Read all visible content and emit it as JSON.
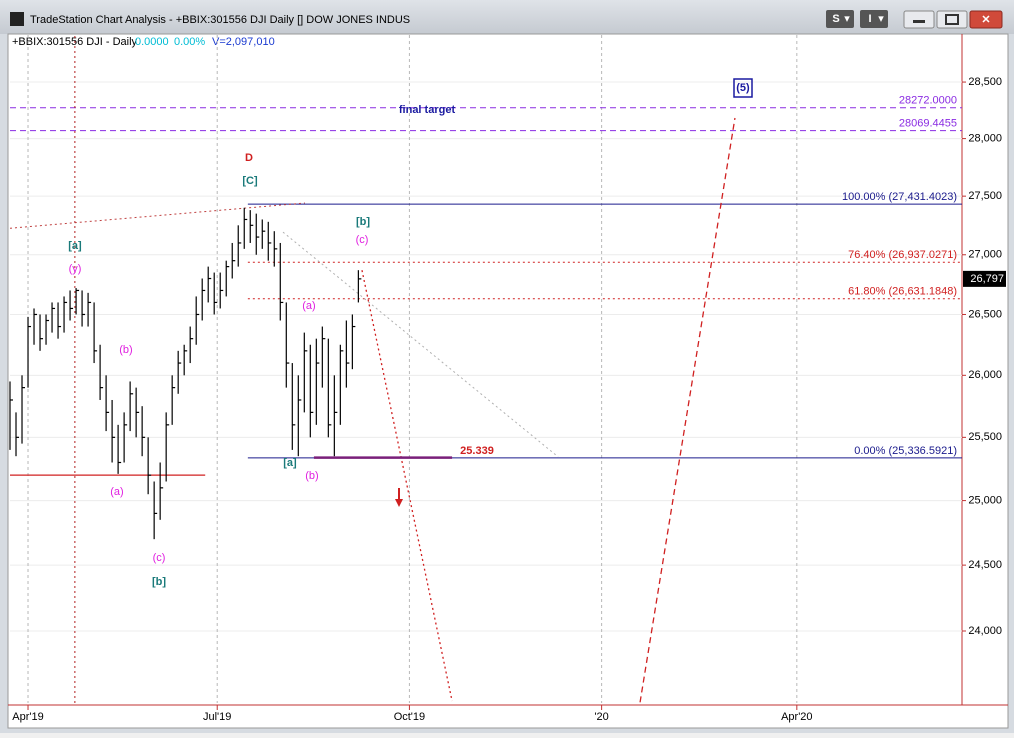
{
  "window": {
    "title": "TradeStation Chart Analysis - +BBIX:301556 DJI Daily [] DOW JONES INDUS",
    "buttons": [
      "S",
      "I"
    ]
  },
  "header": {
    "symbol": "+BBIX:301556 DJI - Daily",
    "change": "0.0000",
    "change_pct": "0.00%",
    "volume": "V=2,097,010"
  },
  "chart_data": {
    "type": "ohlc",
    "log": true,
    "ylim": [
      23465,
      28923
    ],
    "yticks": [
      {
        "value": 24000,
        "label": "24,000"
      },
      {
        "value": 24500,
        "label": "24,500"
      },
      {
        "value": 25000,
        "label": "25,000"
      },
      {
        "value": 25500,
        "label": "25,500"
      },
      {
        "value": 26000,
        "label": "26,000"
      },
      {
        "value": 26500,
        "label": "26,500"
      },
      {
        "value": 27000,
        "label": "27,000"
      },
      {
        "value": 27500,
        "label": "27,500"
      },
      {
        "value": 28000,
        "label": "28,000"
      },
      {
        "value": 28500,
        "label": "28,500"
      }
    ],
    "xlim": [
      -6,
      311
    ],
    "xticks": [
      {
        "value": 0,
        "label": "Apr'19"
      },
      {
        "value": 63,
        "label": "Jul'19"
      },
      {
        "value": 127,
        "label": "Oct'19"
      },
      {
        "value": 191,
        "label": "'20"
      },
      {
        "value": 256,
        "label": "Apr'20"
      }
    ],
    "grid": true,
    "color": "#000000",
    "x": [
      -6,
      -4,
      -2,
      0,
      2,
      4,
      6,
      8,
      10,
      12,
      14,
      16,
      18,
      20,
      22,
      24,
      26,
      28,
      30,
      32,
      34,
      36,
      38,
      40,
      42,
      44,
      46,
      48,
      50,
      52,
      54,
      56,
      58,
      60,
      62,
      64,
      66,
      68,
      70,
      72,
      74,
      76,
      78,
      80,
      82,
      84,
      86,
      88,
      90,
      92,
      94,
      96,
      98,
      100,
      102,
      104,
      106,
      108,
      110
    ],
    "high": [
      25950,
      25700,
      26000,
      26480,
      26550,
      26500,
      26500,
      26600,
      26600,
      26650,
      26700,
      26720,
      26700,
      26680,
      26600,
      26250,
      26000,
      25800,
      25600,
      25700,
      25950,
      25900,
      25750,
      25500,
      25150,
      25300,
      25700,
      26000,
      26200,
      26250,
      26400,
      26650,
      26800,
      26900,
      26850,
      26850,
      26950,
      27100,
      27250,
      27400,
      27380,
      27350,
      27300,
      27280,
      27200,
      27100,
      26600,
      26100,
      26000,
      26350,
      26250,
      26300,
      26400,
      26300,
      26000,
      26250,
      26450,
      26500,
      26870
    ],
    "low": [
      25400,
      25350,
      25450,
      25900,
      26250,
      26200,
      26250,
      26350,
      26300,
      26350,
      26450,
      26500,
      26400,
      26400,
      26100,
      25800,
      25550,
      25300,
      25210,
      25300,
      25550,
      25500,
      25350,
      25050,
      24700,
      24850,
      25150,
      25600,
      25850,
      26000,
      26100,
      26250,
      26450,
      26600,
      26500,
      26550,
      26650,
      26800,
      26900,
      27050,
      27100,
      27000,
      27050,
      26950,
      26900,
      26450,
      25900,
      25400,
      25350,
      25700,
      25500,
      25600,
      25900,
      25500,
      25350,
      25600,
      25900,
      26050,
      26600
    ],
    "close": [
      25800,
      25500,
      25900,
      26400,
      26500,
      26300,
      26450,
      26550,
      26400,
      26600,
      26550,
      26700,
      26500,
      26600,
      26200,
      25900,
      25700,
      25500,
      25300,
      25600,
      25850,
      25700,
      25500,
      25200,
      24900,
      25100,
      25600,
      25900,
      26100,
      26200,
      26300,
      26500,
      26700,
      26800,
      26600,
      26700,
      26900,
      26950,
      27100,
      27300,
      27250,
      27150,
      27200,
      27100,
      27050,
      26600,
      26100,
      25600,
      25800,
      26200,
      25700,
      26100,
      26300,
      25600,
      25700,
      26200,
      26100,
      26400,
      26797
    ],
    "last_price": {
      "value": 26797,
      "label": "26,797"
    },
    "levels": [
      {
        "value": 28272.0,
        "label": "28272.0000",
        "color": "#8a2be2",
        "style": "dash",
        "from": -6
      },
      {
        "value": 28069.4455,
        "label": "28069.4455",
        "color": "#8a2be2",
        "style": "dash",
        "from": -6
      },
      {
        "value": 27431.4023,
        "label": "100.00% (27,431.4023)",
        "color": "#1a1a8c",
        "style": "solid",
        "from": 73.2
      },
      {
        "value": 26937.0271,
        "label": "76.40% (26,937.0271)",
        "color": "#d02020",
        "style": "dot",
        "from": 73.2
      },
      {
        "value": 26631.1848,
        "label": "61.80% (26,631.1848)",
        "color": "#d02020",
        "style": "dot",
        "from": 73.2
      },
      {
        "value": 25336.5921,
        "label": "0.00% (25,336.5921)",
        "color": "#1a1a8c",
        "style": "solid",
        "from": 73.2
      }
    ],
    "lines": [
      {
        "x": [
          111.2,
          141.2
        ],
        "y": [
          26870,
          23480
        ],
        "color": "#d02020",
        "style": "dot",
        "width": 1.3
      },
      {
        "x": [
          203.8,
          235.4
        ],
        "y": [
          23470,
          28181
        ],
        "color": "#d02020",
        "style": "dash",
        "width": 1.3
      },
      {
        "x": [
          84.9,
          176.5
        ],
        "y": [
          27192,
          25345
        ],
        "color": "#b0b0b0",
        "style": "dot",
        "width": 1
      },
      {
        "x": [
          -6,
          92.2
        ],
        "y": [
          27225,
          27441
        ],
        "color": "#c04040",
        "style": "dot",
        "width": 1
      },
      {
        "x": [
          -6,
          59
        ],
        "y": [
          25200,
          25200
        ],
        "color": "#d02020",
        "style": "solid",
        "width": 1.2
      },
      {
        "x": [
          95.2,
          141.2
        ],
        "y": [
          25339,
          25339
        ],
        "color": "#7a1f7a",
        "style": "solid",
        "width": 2.5
      },
      {
        "x": [
          15.6,
          15.6
        ],
        "y": [
          23465,
          28923
        ],
        "color": "#b02020",
        "style": "dot",
        "width": 1
      }
    ],
    "annotations": [
      "[a]",
      "(y)",
      "(b)",
      "(a)",
      "(c)",
      "[b]",
      "D",
      "[C]",
      "[b]",
      "(c)",
      "(a)",
      "[a]",
      "(b)",
      "(5)",
      "final target",
      "25.339"
    ]
  }
}
